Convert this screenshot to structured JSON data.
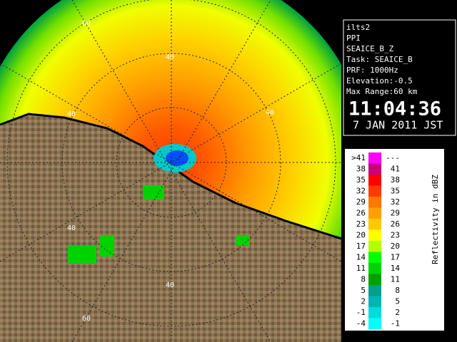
{
  "panel": {
    "lines": [
      "ilts2",
      "PPI",
      "SEAICE_B_Z",
      "Task: SEAICE_B",
      "PRF: 1000Hz",
      "Elevation:-0.5",
      "Max Range:60 km"
    ],
    "time": "11:04:36",
    "date": "7 JAN 2011 JST"
  },
  "range_labels": [
    "60",
    "40",
    "40",
    "40",
    "40",
    "40",
    "60"
  ],
  "scale": {
    "title": "Reflectivity in dBZ",
    "rows": [
      {
        "low": ">41",
        "high": "---",
        "color": "#ff00ff"
      },
      {
        "low": "38",
        "high": "41",
        "color": "#c8007a"
      },
      {
        "low": "35",
        "high": "38",
        "color": "#ff0000"
      },
      {
        "low": "32",
        "high": "35",
        "color": "#ff3c00"
      },
      {
        "low": "29",
        "high": "32",
        "color": "#ff7800"
      },
      {
        "low": "26",
        "high": "29",
        "color": "#ffa000"
      },
      {
        "low": "23",
        "high": "26",
        "color": "#ffc800"
      },
      {
        "low": "20",
        "high": "23",
        "color": "#ffff00"
      },
      {
        "low": "17",
        "high": "20",
        "color": "#b4ff00"
      },
      {
        "low": "14",
        "high": "17",
        "color": "#00ff00"
      },
      {
        "low": "11",
        "high": "14",
        "color": "#00d200"
      },
      {
        "low": "8",
        "high": "11",
        "color": "#00a000"
      },
      {
        "low": "5",
        "high": "8",
        "color": "#00a08c"
      },
      {
        "low": "2",
        "high": "5",
        "color": "#00b4b4"
      },
      {
        "low": "-1",
        "high": "2",
        "color": "#00dcdc"
      },
      {
        "low": "-4",
        "high": "-1",
        "color": "#00ffff"
      }
    ]
  }
}
